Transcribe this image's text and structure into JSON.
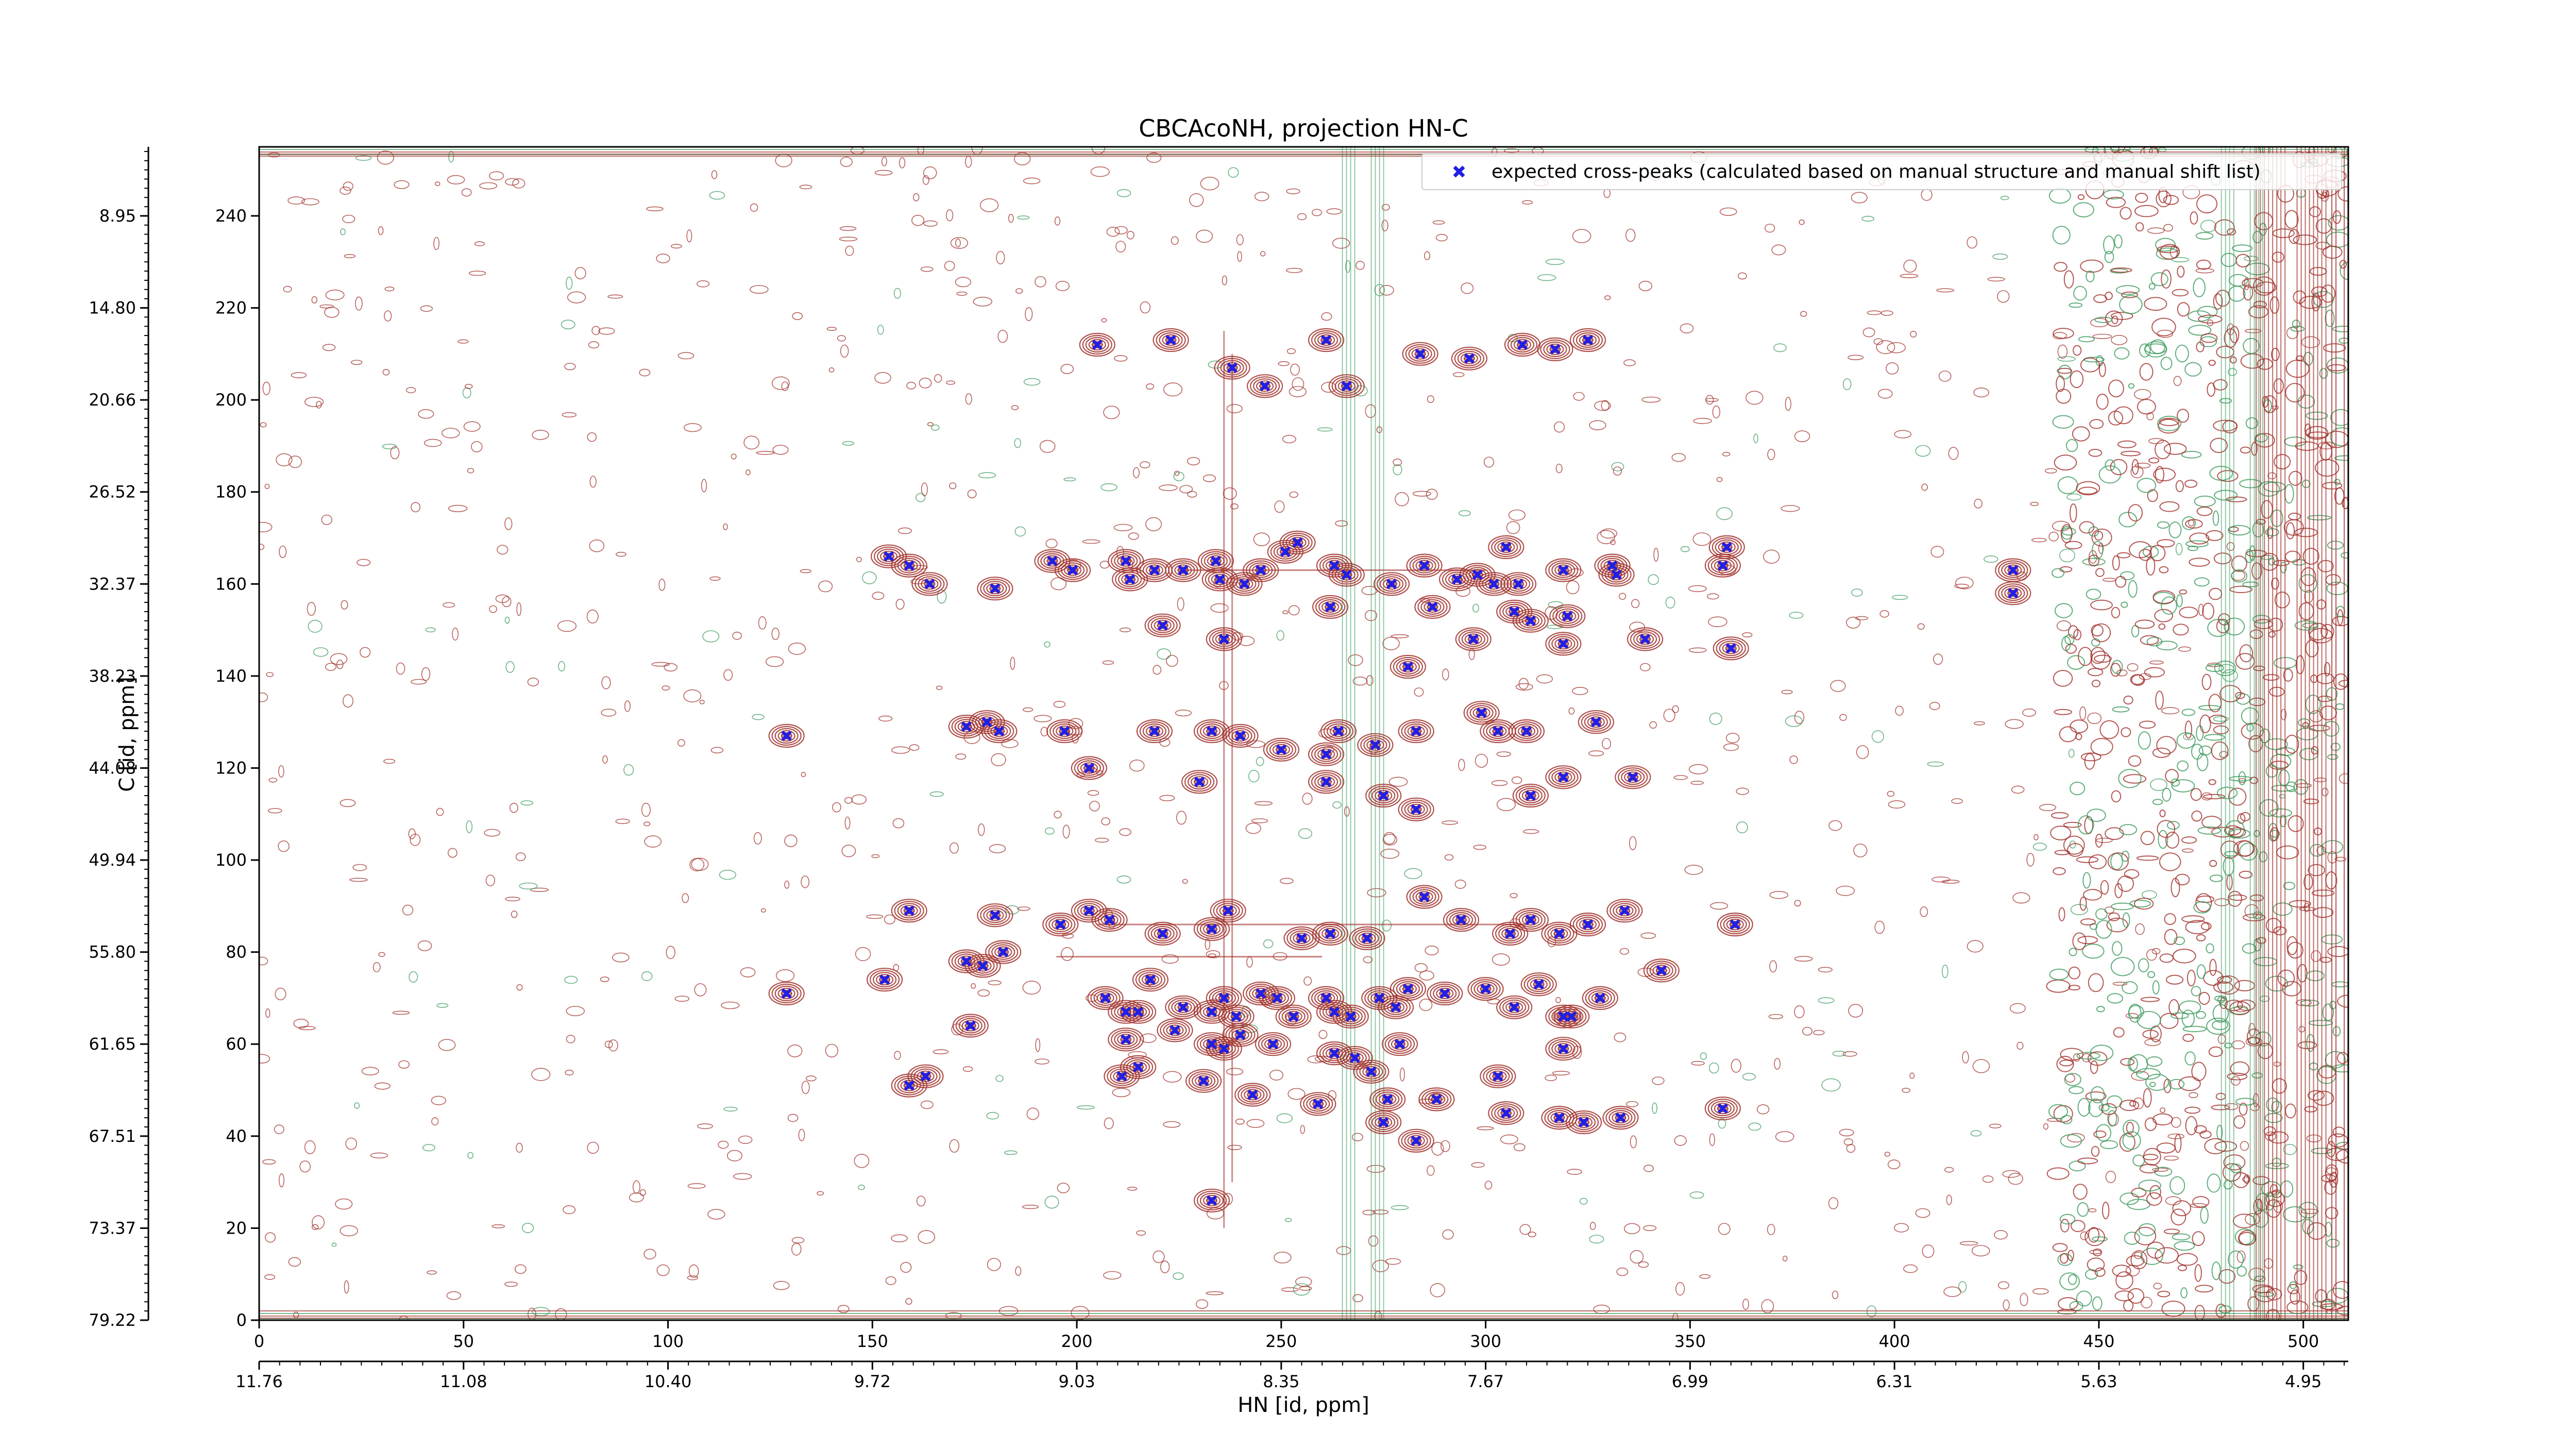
{
  "chart_data": {
    "type": "scatter",
    "title": "CBCAcoNH, projection HN-C",
    "xlabel": "HN [id, ppm]",
    "ylabel": "C [id, ppm]",
    "x_index_range": [
      0,
      511
    ],
    "y_index_range": [
      0,
      255
    ],
    "primary_x_ticks": [
      "0",
      "50",
      "100",
      "150",
      "200",
      "250",
      "300",
      "350",
      "400",
      "450",
      "500"
    ],
    "primary_y_ticks": [
      "0",
      "20",
      "40",
      "60",
      "80",
      "100",
      "120",
      "140",
      "160",
      "180",
      "200",
      "220",
      "240"
    ],
    "secondary_x_ticks": [
      "11.76",
      "11.08",
      "10.40",
      "9.72",
      "9.03",
      "8.35",
      "7.67",
      "6.99",
      "6.31",
      "5.63",
      "4.95"
    ],
    "secondary_y_ticks": [
      "79.22",
      "73.37",
      "67.51",
      "61.65",
      "55.80",
      "49.94",
      "44.08",
      "38.23",
      "32.37",
      "26.52",
      "20.66",
      "14.80",
      "8.95"
    ],
    "legend": {
      "label": "expected cross-peaks (calculated based on manual structure and manual shift list)",
      "placement": "upper right",
      "marker_color": "#1f1fe6"
    },
    "contour_colors": {
      "positive": "#a0302a",
      "negative": "#3c9a5c"
    },
    "grid": false,
    "series": [
      {
        "name": "expected cross-peaks (calculated based on manual structure and manual shift list)",
        "x": [
          205,
          223,
          238,
          246,
          266,
          261,
          284,
          296,
          309,
          317,
          325,
          154,
          159,
          164,
          180,
          194,
          199,
          212,
          213,
          219,
          226,
          234,
          235,
          241,
          245,
          251,
          254,
          263,
          266,
          277,
          285,
          293,
          298,
          302,
          305,
          308,
          319,
          331,
          332,
          358,
          359,
          429,
          429,
          221,
          236,
          262,
          281,
          287,
          297,
          307,
          311,
          320,
          319,
          339,
          360,
          129,
          173,
          178,
          181,
          197,
          203,
          219,
          233,
          240,
          250,
          261,
          264,
          273,
          283,
          299,
          303,
          310,
          319,
          327,
          336,
          230,
          261,
          275,
          283,
          311,
          159,
          180,
          196,
          203,
          208,
          221,
          233,
          237,
          255,
          262,
          271,
          285,
          294,
          306,
          311,
          318,
          325,
          334,
          361,
          173,
          177,
          182,
          207,
          212,
          218,
          226,
          233,
          236,
          239,
          245,
          249,
          253,
          261,
          263,
          267,
          274,
          278,
          281,
          290,
          300,
          307,
          313,
          319,
          328,
          343,
          129,
          153,
          174,
          212,
          215,
          224,
          233,
          236,
          240,
          248,
          263,
          268,
          272,
          279,
          303,
          319,
          321,
          159,
          163,
          211,
          215,
          231,
          243,
          259,
          276,
          288,
          305,
          318,
          324,
          333,
          358,
          233,
          275,
          283
        ],
        "y": [
          212,
          213,
          207,
          203,
          203,
          213,
          210,
          209,
          212,
          211,
          213,
          166,
          164,
          160,
          159,
          165,
          163,
          165,
          161,
          163,
          163,
          165,
          161,
          160,
          163,
          167,
          169,
          164,
          162,
          160,
          164,
          161,
          162,
          160,
          168,
          160,
          163,
          164,
          162,
          164,
          168,
          163,
          158,
          151,
          148,
          155,
          142,
          155,
          148,
          154,
          152,
          153,
          147,
          148,
          146,
          127,
          129,
          130,
          128,
          128,
          120,
          128,
          128,
          127,
          124,
          123,
          128,
          125,
          128,
          132,
          128,
          128,
          118,
          130,
          118,
          117,
          117,
          114,
          111,
          114,
          89,
          88,
          86,
          89,
          87,
          84,
          85,
          89,
          83,
          84,
          83,
          92,
          87,
          84,
          87,
          84,
          86,
          89,
          86,
          78,
          77,
          80,
          70,
          67,
          74,
          68,
          67,
          70,
          66,
          71,
          70,
          66,
          70,
          67,
          66,
          70,
          68,
          72,
          71,
          72,
          68,
          73,
          66,
          70,
          76,
          71,
          74,
          64,
          61,
          67,
          63,
          60,
          59,
          62,
          60,
          58,
          57,
          54,
          60,
          53,
          59,
          66,
          51,
          53,
          53,
          55,
          52,
          49,
          47,
          48,
          48,
          45,
          44,
          43,
          44,
          46,
          26,
          43,
          39
        ]
      }
    ]
  }
}
